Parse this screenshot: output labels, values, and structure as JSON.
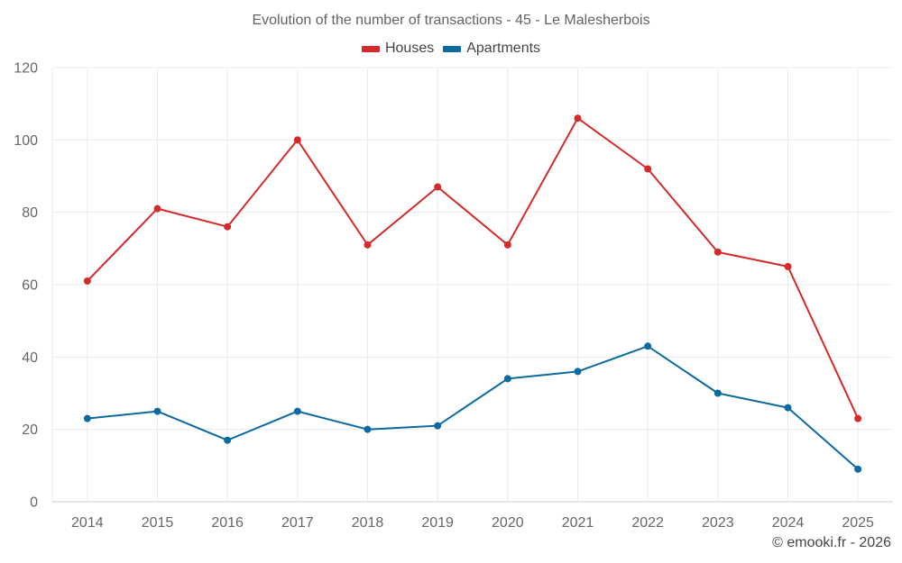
{
  "chart_data": {
    "type": "line",
    "title": "Evolution of the number of transactions - 45 - Le Malesherbois",
    "xlabel": "",
    "ylabel": "",
    "categories": [
      "2014",
      "2015",
      "2016",
      "2017",
      "2018",
      "2019",
      "2020",
      "2021",
      "2022",
      "2023",
      "2024",
      "2025"
    ],
    "ylim": [
      0,
      120
    ],
    "yticks": [
      0,
      20,
      40,
      60,
      80,
      100,
      120
    ],
    "grid": true,
    "legend_position": "top-center",
    "series": [
      {
        "name": "Houses",
        "color": "#d42a2a",
        "values": [
          61,
          81,
          76,
          100,
          71,
          87,
          71,
          106,
          92,
          69,
          65,
          23
        ]
      },
      {
        "name": "Apartments",
        "color": "#0b6aa0",
        "values": [
          23,
          25,
          17,
          25,
          20,
          21,
          34,
          36,
          43,
          30,
          26,
          9
        ]
      }
    ]
  },
  "credit": "© emooki.fr - 2026"
}
